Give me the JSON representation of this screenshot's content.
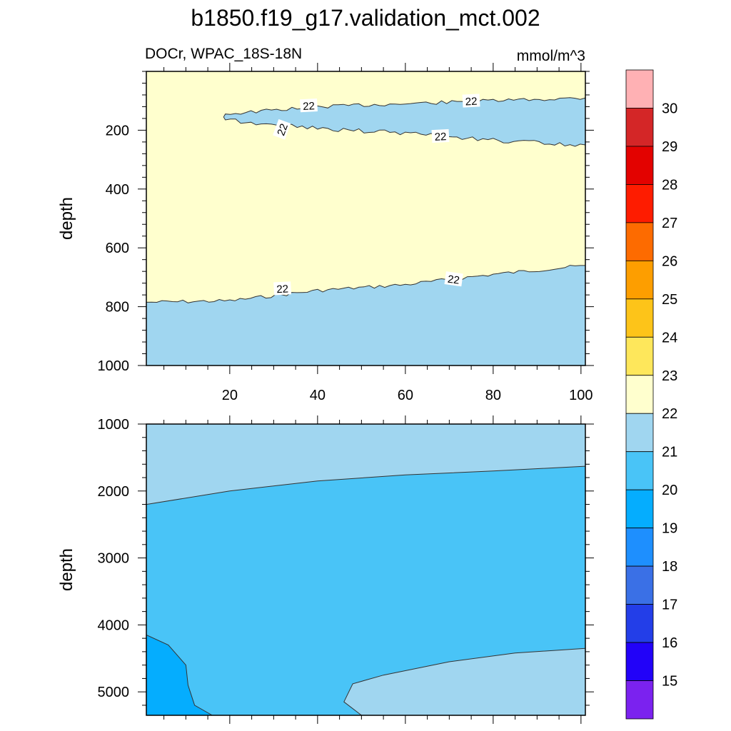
{
  "chart_data": {
    "type": "heatmap",
    "title": "b1850.f19_g17.validation_mct.002",
    "variable_label": "DOCr, WPAC_18S-18N",
    "units_label": "mmol/m^3",
    "colorbar": {
      "levels": [
        15,
        16,
        17,
        18,
        19,
        20,
        21,
        22,
        23,
        24,
        25,
        26,
        27,
        28,
        29,
        30
      ],
      "colors": [
        "#7b22ef",
        "#2202f8",
        "#233ee8",
        "#3a70e6",
        "#1e8ffe",
        "#05adfe",
        "#49c4f7",
        "#a0d6f0",
        "#ffffce",
        "#fee75b",
        "#fdc419",
        "#fd9e00",
        "#fd6b00",
        "#fe1c00",
        "#e30200",
        "#d42627",
        "#ffb1b4"
      ],
      "orientation": "vertical",
      "placement": "right"
    },
    "panels": [
      {
        "name": "upper",
        "ylabel": "depth",
        "xlim": [
          1,
          101
        ],
        "ylim": [
          0,
          1000
        ],
        "y_inverted": true,
        "xticks": [
          20,
          40,
          60,
          80,
          100
        ],
        "yticks": [
          200,
          400,
          600,
          800,
          1000
        ],
        "background_level_range": [
          22,
          23
        ],
        "regions": [
          {
            "level_range": [
              21,
              22
            ],
            "boundary_depths_by_x": [
              {
                "x": 20,
                "depth": 780
              },
              {
                "x": 40,
                "depth": 745
              },
              {
                "x": 60,
                "depth": 725
              },
              {
                "x": 80,
                "depth": 690
              },
              {
                "x": 101,
                "depth": 660
              }
            ],
            "extends_to": "bottom"
          },
          {
            "level_range": [
              21,
              22
            ],
            "shape": "tongue",
            "upper_boundary": [
              {
                "x": 19,
                "depth": 145
              },
              {
                "x": 40,
                "depth": 120
              },
              {
                "x": 60,
                "depth": 110
              },
              {
                "x": 80,
                "depth": 100
              },
              {
                "x": 101,
                "depth": 90
              }
            ],
            "lower_boundary": [
              {
                "x": 101,
                "depth": 250
              },
              {
                "x": 80,
                "depth": 235
              },
              {
                "x": 60,
                "depth": 210
              },
              {
                "x": 40,
                "depth": 195
              },
              {
                "x": 19,
                "depth": 165
              }
            ]
          }
        ],
        "contour_labels": [
          {
            "text": "22",
            "x": 38,
            "depth": 118
          },
          {
            "text": "22",
            "x": 75,
            "depth": 102
          },
          {
            "text": "22",
            "x": 32,
            "depth": 198
          },
          {
            "text": "22",
            "x": 68,
            "depth": 222
          },
          {
            "text": "22",
            "x": 32,
            "depth": 740
          },
          {
            "text": "22",
            "x": 71,
            "depth": 708
          }
        ]
      },
      {
        "name": "lower",
        "ylabel": "depth",
        "xlim": [
          1,
          101
        ],
        "ylim": [
          1000,
          5350
        ],
        "y_inverted": true,
        "xticks": [
          20,
          40,
          60,
          80,
          100
        ],
        "yticks": [
          1000,
          2000,
          3000,
          4000,
          5000
        ],
        "background_level_range": [
          20,
          21
        ],
        "regions": [
          {
            "level_range": [
              21,
              22
            ],
            "boundary_depths_by_x": [
              {
                "x": 1,
                "depth": 2200
              },
              {
                "x": 20,
                "depth": 2000
              },
              {
                "x": 40,
                "depth": 1850
              },
              {
                "x": 60,
                "depth": 1760
              },
              {
                "x": 80,
                "depth": 1700
              },
              {
                "x": 101,
                "depth": 1630
              }
            ],
            "extends_to": "top"
          },
          {
            "level_range": [
              21,
              22
            ],
            "shape": "bottom-right-pool",
            "boundary": [
              {
                "x": 50,
                "depth": 5350
              },
              {
                "x": 46,
                "depth": 5150
              },
              {
                "x": 48,
                "depth": 4880
              },
              {
                "x": 55,
                "depth": 4750
              },
              {
                "x": 70,
                "depth": 4550
              },
              {
                "x": 85,
                "depth": 4420
              },
              {
                "x": 101,
                "depth": 4350
              }
            ]
          },
          {
            "level_range": [
              19,
              20
            ],
            "shape": "bottom-left-pool",
            "boundary": [
              {
                "x": 1,
                "depth": 4150
              },
              {
                "x": 6,
                "depth": 4300
              },
              {
                "x": 10,
                "depth": 4600
              },
              {
                "x": 10.5,
                "depth": 4900
              },
              {
                "x": 12,
                "depth": 5200
              },
              {
                "x": 16,
                "depth": 5350
              }
            ]
          }
        ]
      }
    ]
  }
}
